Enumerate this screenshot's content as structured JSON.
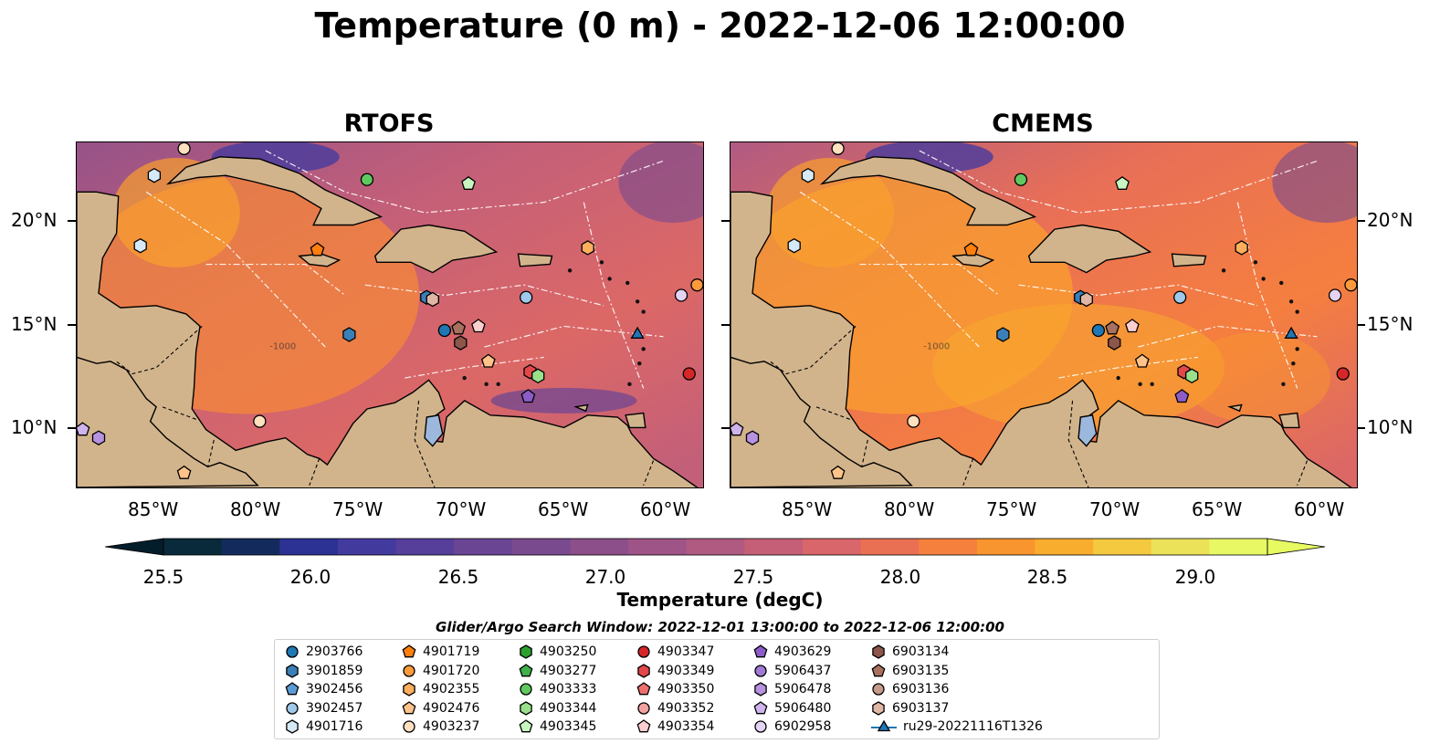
{
  "title": "Temperature (0 m) - 2022-12-06 12:00:00",
  "panels": [
    {
      "title": "RTOFS"
    },
    {
      "title": "CMEMS"
    }
  ],
  "lon_ticks": [
    "85°W",
    "80°W",
    "75°W",
    "70°W",
    "65°W",
    "60°W"
  ],
  "lat_ticks": [
    "20°N",
    "15°N",
    "10°N"
  ],
  "colorbar": {
    "label": "Temperature (degC)",
    "ticks": [
      "25.5",
      "26.0",
      "26.5",
      "27.0",
      "27.5",
      "28.0",
      "28.5",
      "29.0"
    ],
    "colors": [
      "#082a3a",
      "#132b5c",
      "#2c3194",
      "#433a9e",
      "#553f9a",
      "#694594",
      "#7a4a8e",
      "#8c4f8a",
      "#9e5486",
      "#b05a82",
      "#c55f78",
      "#d9666a",
      "#ea7054",
      "#f5803e",
      "#f9952e",
      "#f9ad2e",
      "#f4c83f",
      "#ece25a",
      "#e8f865"
    ],
    "extend_min_color": "#041d2a",
    "extend_max_color": "#e8fa62"
  },
  "bathymetry_label": "-1000",
  "search_window": "Glider/Argo Search Window: 2022-12-01 13:00:00 to 2022-12-06 12:00:00",
  "legend": [
    {
      "label": "2903766",
      "marker": "circle",
      "color": "#1f77b4"
    },
    {
      "label": "3901859",
      "marker": "hexagon",
      "color": "#3b7fb8"
    },
    {
      "label": "3902456",
      "marker": "pentagon",
      "color": "#5b9bd5"
    },
    {
      "label": "3902457",
      "marker": "circle",
      "color": "#9ec9ea"
    },
    {
      "label": "4901716",
      "marker": "hexagon",
      "color": "#d6e9f8"
    },
    {
      "label": "4901719",
      "marker": "pentagon",
      "color": "#ff7f0e"
    },
    {
      "label": "4901720",
      "marker": "circle",
      "color": "#ff9a3c"
    },
    {
      "label": "4902355",
      "marker": "hexagon",
      "color": "#ffae5c"
    },
    {
      "label": "4902476",
      "marker": "pentagon",
      "color": "#ffc38a"
    },
    {
      "label": "4903237",
      "marker": "circle",
      "color": "#ffe0bf"
    },
    {
      "label": "4903250",
      "marker": "hexagon",
      "color": "#2ca02c"
    },
    {
      "label": "4903277",
      "marker": "pentagon",
      "color": "#3fb04a"
    },
    {
      "label": "4903333",
      "marker": "circle",
      "color": "#5fc95f"
    },
    {
      "label": "4903344",
      "marker": "hexagon",
      "color": "#98e08a"
    },
    {
      "label": "4903345",
      "marker": "pentagon",
      "color": "#c8f5c0"
    },
    {
      "label": "4903347",
      "marker": "circle",
      "color": "#d62728"
    },
    {
      "label": "4903349",
      "marker": "hexagon",
      "color": "#e3474a"
    },
    {
      "label": "4903350",
      "marker": "pentagon",
      "color": "#ef6f6f"
    },
    {
      "label": "4903352",
      "marker": "circle",
      "color": "#f4a0a0"
    },
    {
      "label": "4903354",
      "marker": "pentagon",
      "color": "#fbcfcf"
    },
    {
      "label": "4903629",
      "marker": "pentagon",
      "color": "#8c5cc7"
    },
    {
      "label": "5906437",
      "marker": "circle",
      "color": "#a07ad6"
    },
    {
      "label": "5906478",
      "marker": "hexagon",
      "color": "#b792e0"
    },
    {
      "label": "5906480",
      "marker": "pentagon",
      "color": "#cfb3ec"
    },
    {
      "label": "6902958",
      "marker": "circle",
      "color": "#e5d3f5"
    },
    {
      "label": "6903134",
      "marker": "hexagon",
      "color": "#8c564b"
    },
    {
      "label": "6903135",
      "marker": "pentagon",
      "color": "#a8705f"
    },
    {
      "label": "6903136",
      "marker": "circle",
      "color": "#c49a88"
    },
    {
      "label": "6903137",
      "marker": "hexagon",
      "color": "#e0b7a4"
    },
    {
      "label": "ru29-20221116T1326",
      "marker": "triangle-line",
      "color": "#1f77b4"
    }
  ],
  "markers": [
    {
      "id": "4903237",
      "lon": -84.1,
      "lat": 23.6
    },
    {
      "id": "4901716",
      "lon": -85.6,
      "lat": 22.3
    },
    {
      "id": "4903333",
      "lon": -74.9,
      "lat": 22.1
    },
    {
      "id": "4903345",
      "lon": -69.8,
      "lat": 21.9
    },
    {
      "id": "4901716",
      "lon": -86.3,
      "lat": 18.9
    },
    {
      "id": "4901719",
      "lon": -77.4,
      "lat": 18.7
    },
    {
      "id": "4902355",
      "lon": -63.8,
      "lat": 18.8
    },
    {
      "id": "3901859",
      "lon": -71.9,
      "lat": 16.4
    },
    {
      "id": "6903137",
      "lon": -71.6,
      "lat": 16.3
    },
    {
      "id": "3902457",
      "lon": -66.9,
      "lat": 16.4
    },
    {
      "id": "6902958",
      "lon": -59.1,
      "lat": 16.5
    },
    {
      "id": "4901720",
      "lon": -58.3,
      "lat": 17.0
    },
    {
      "id": "3901859",
      "lon": -75.8,
      "lat": 14.6
    },
    {
      "id": "2903766",
      "lon": -71.0,
      "lat": 14.8
    },
    {
      "id": "6903135",
      "lon": -70.3,
      "lat": 14.9
    },
    {
      "id": "6903134",
      "lon": -70.2,
      "lat": 14.2
    },
    {
      "id": "4903354",
      "lon": -69.3,
      "lat": 15.0
    },
    {
      "id": "4902476",
      "lon": -68.8,
      "lat": 13.3
    },
    {
      "id": "4903349",
      "lon": -66.7,
      "lat": 12.8
    },
    {
      "id": "4903344",
      "lon": -66.3,
      "lat": 12.6
    },
    {
      "id": "4903629",
      "lon": -66.8,
      "lat": 11.6
    },
    {
      "id": "4903347",
      "lon": -58.7,
      "lat": 12.7
    },
    {
      "id": "4903237",
      "lon": -80.3,
      "lat": 10.4
    },
    {
      "id": "5906480",
      "lon": -89.2,
      "lat": 10.0
    },
    {
      "id": "5906478",
      "lon": -88.4,
      "lat": 9.6
    },
    {
      "id": "4902476",
      "lon": -84.1,
      "lat": 7.9
    },
    {
      "id": "ru29-20221116T1326",
      "lon": -61.3,
      "lat": 14.6
    }
  ]
}
